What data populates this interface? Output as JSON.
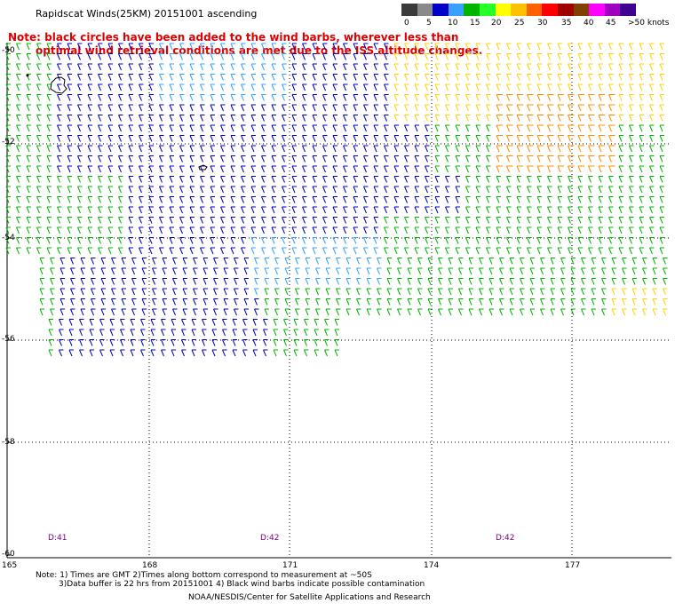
{
  "title": "Rapidscat Winds(25KM) 20151001 ascending",
  "note_line1": "Note: black circles have been added to the wind barbs, wherever less than",
  "note_line2": "optimal wind retrieval conditions are met due to the ISS altitude changes.",
  "scale": {
    "labels": [
      "0",
      "5",
      "10",
      "15",
      "20",
      "25",
      "30",
      "35",
      "40",
      "45",
      ">50 knots"
    ],
    "colors": [
      "#3a3a3a",
      "#8a8a8a",
      "#0000c8",
      "#3aa0ff",
      "#00b400",
      "#28ff28",
      "#ffff00",
      "#ffc000",
      "#ff6000",
      "#ff0000",
      "#a00000",
      "#804000",
      "#ff00ff",
      "#a000c0",
      "#400090"
    ]
  },
  "lat_labels": [
    "-50",
    "-52",
    "-54",
    "-56",
    "-58",
    "-60"
  ],
  "lon_labels": [
    "165",
    "168",
    "171",
    "174",
    "177"
  ],
  "day_labels": [
    "D:41",
    "D:42",
    "D:42"
  ],
  "footer": {
    "line1": "Note: 1) Times are GMT 2)Times along bottom correspond to measurement at ~50S",
    "line2": "3)Data buffer is 22 hrs from 20151001 4) Black wind barbs indicate possible contamination",
    "line3": "NOAA/NESDIS/Center for Satellite Applications and Research"
  }
}
